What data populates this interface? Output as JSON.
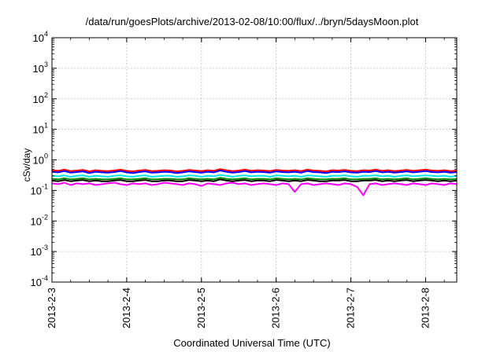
{
  "chart_data": {
    "type": "line",
    "title": "/data/run/goesPlots/archive/2013-02-08/10:00/flux/../bryn/5daysMoon.plot",
    "xlabel": "Coordinated Universal Time (UTC)",
    "ylabel": "cSv/day",
    "y_scale": "log",
    "ylim": [
      0.0001,
      10000
    ],
    "y_ticks": [
      {
        "value": 0.0001,
        "base": "10",
        "exp": "-4"
      },
      {
        "value": 0.001,
        "base": "10",
        "exp": "-3"
      },
      {
        "value": 0.01,
        "base": "10",
        "exp": "-2"
      },
      {
        "value": 0.1,
        "base": "10",
        "exp": "-1"
      },
      {
        "value": 1,
        "base": "10",
        "exp": "0"
      },
      {
        "value": 10,
        "base": "10",
        "exp": "1"
      },
      {
        "value": 100,
        "base": "10",
        "exp": "2"
      },
      {
        "value": 1000,
        "base": "10",
        "exp": "3"
      },
      {
        "value": 10000,
        "base": "10",
        "exp": "4"
      }
    ],
    "xlim": [
      "2013-02-03 00:00",
      "2013-02-08 10:00"
    ],
    "x_ticks": [
      "2013-2-3",
      "2013-2-4",
      "2013-2-5",
      "2013-2-6",
      "2013-2-7",
      "2013-2-8"
    ],
    "grid": true,
    "series": [
      {
        "color": "#ff0000",
        "level": 0.45,
        "sampling_hours": 2,
        "values": [
          0.46,
          0.44,
          0.48,
          0.43,
          0.45,
          0.47,
          0.42,
          0.46,
          0.44,
          0.43,
          0.45,
          0.48,
          0.44,
          0.42,
          0.45,
          0.47,
          0.43,
          0.44,
          0.46,
          0.45,
          0.42,
          0.44,
          0.47,
          0.45,
          0.43,
          0.46,
          0.44,
          0.5,
          0.46,
          0.43,
          0.45,
          0.48,
          0.44,
          0.46,
          0.45,
          0.43,
          0.47,
          0.45,
          0.44,
          0.46,
          0.43,
          0.48,
          0.45,
          0.44,
          0.42,
          0.46,
          0.45,
          0.47,
          0.44,
          0.43,
          0.46,
          0.45,
          0.48,
          0.44,
          0.46,
          0.43,
          0.45,
          0.47,
          0.44,
          0.46,
          0.48,
          0.45,
          0.44,
          0.46,
          0.43,
          0.45
        ]
      },
      {
        "color": "#0000ff",
        "level": 0.4,
        "sampling_hours": 2,
        "values": [
          0.41,
          0.39,
          0.43,
          0.38,
          0.4,
          0.42,
          0.37,
          0.41,
          0.39,
          0.38,
          0.4,
          0.43,
          0.39,
          0.37,
          0.4,
          0.42,
          0.38,
          0.39,
          0.41,
          0.4,
          0.37,
          0.39,
          0.42,
          0.4,
          0.38,
          0.41,
          0.39,
          0.45,
          0.41,
          0.38,
          0.4,
          0.43,
          0.39,
          0.41,
          0.4,
          0.38,
          0.42,
          0.4,
          0.39,
          0.41,
          0.38,
          0.43,
          0.4,
          0.39,
          0.37,
          0.41,
          0.4,
          0.42,
          0.39,
          0.38,
          0.41,
          0.4,
          0.43,
          0.39,
          0.41,
          0.38,
          0.4,
          0.42,
          0.39,
          0.41,
          0.43,
          0.4,
          0.39,
          0.41,
          0.38,
          0.4
        ]
      },
      {
        "color": "#00e5e5",
        "level": 0.3,
        "sampling_hours": 2,
        "values": [
          0.3,
          0.29,
          0.31,
          0.28,
          0.3,
          0.31,
          0.28,
          0.3,
          0.29,
          0.28,
          0.3,
          0.31,
          0.29,
          0.28,
          0.3,
          0.31,
          0.28,
          0.29,
          0.3,
          0.3,
          0.28,
          0.29,
          0.31,
          0.3,
          0.28,
          0.3,
          0.29,
          0.32,
          0.3,
          0.28,
          0.3,
          0.31,
          0.29,
          0.3,
          0.3,
          0.28,
          0.31,
          0.3,
          0.29,
          0.3,
          0.28,
          0.31,
          0.3,
          0.29,
          0.28,
          0.3,
          0.3,
          0.31,
          0.29,
          0.28,
          0.3,
          0.3,
          0.31,
          0.29,
          0.3,
          0.28,
          0.3,
          0.31,
          0.29,
          0.3,
          0.31,
          0.3,
          0.29,
          0.3,
          0.28,
          0.3
        ]
      },
      {
        "color": "#008b00",
        "level": 0.24,
        "sampling_hours": 2,
        "values": [
          0.24,
          0.23,
          0.25,
          0.23,
          0.24,
          0.25,
          0.23,
          0.24,
          0.23,
          0.23,
          0.24,
          0.25,
          0.23,
          0.23,
          0.24,
          0.25,
          0.23,
          0.23,
          0.24,
          0.24,
          0.23,
          0.23,
          0.25,
          0.24,
          0.23,
          0.24,
          0.23,
          0.26,
          0.24,
          0.23,
          0.24,
          0.25,
          0.23,
          0.24,
          0.24,
          0.23,
          0.25,
          0.24,
          0.23,
          0.24,
          0.23,
          0.25,
          0.24,
          0.23,
          0.23,
          0.24,
          0.24,
          0.25,
          0.23,
          0.23,
          0.24,
          0.24,
          0.25,
          0.23,
          0.24,
          0.23,
          0.24,
          0.25,
          0.23,
          0.24,
          0.25,
          0.24,
          0.23,
          0.24,
          0.23,
          0.24
        ]
      },
      {
        "color": "#000000",
        "level": 0.21,
        "sampling_hours": 2,
        "values": [
          0.21,
          0.2,
          0.22,
          0.2,
          0.21,
          0.22,
          0.2,
          0.21,
          0.2,
          0.2,
          0.21,
          0.22,
          0.2,
          0.2,
          0.21,
          0.22,
          0.2,
          0.2,
          0.21,
          0.21,
          0.2,
          0.2,
          0.22,
          0.21,
          0.2,
          0.21,
          0.2,
          0.23,
          0.21,
          0.2,
          0.21,
          0.22,
          0.2,
          0.21,
          0.21,
          0.2,
          0.22,
          0.21,
          0.2,
          0.21,
          0.2,
          0.22,
          0.21,
          0.2,
          0.2,
          0.21,
          0.21,
          0.22,
          0.2,
          0.2,
          0.21,
          0.21,
          0.22,
          0.2,
          0.21,
          0.2,
          0.21,
          0.22,
          0.2,
          0.21,
          0.22,
          0.21,
          0.2,
          0.21,
          0.2,
          0.21
        ]
      },
      {
        "color": "#ff00ff",
        "level": 0.17,
        "sampling_hours": 2,
        "values": [
          0.17,
          0.16,
          0.18,
          0.15,
          0.17,
          0.16,
          0.17,
          0.15,
          0.16,
          0.17,
          0.18,
          0.16,
          0.15,
          0.17,
          0.16,
          0.17,
          0.15,
          0.16,
          0.18,
          0.17,
          0.16,
          0.15,
          0.17,
          0.16,
          0.14,
          0.17,
          0.16,
          0.15,
          0.17,
          0.18,
          0.16,
          0.17,
          0.15,
          0.16,
          0.17,
          0.16,
          0.15,
          0.17,
          0.16,
          0.09,
          0.16,
          0.17,
          0.15,
          0.16,
          0.17,
          0.16,
          0.15,
          0.17,
          0.16,
          0.13,
          0.07,
          0.16,
          0.17,
          0.15,
          0.16,
          0.17,
          0.16,
          0.15,
          0.17,
          0.16,
          0.15,
          0.17,
          0.16,
          0.15,
          0.17,
          0.16
        ]
      }
    ]
  }
}
